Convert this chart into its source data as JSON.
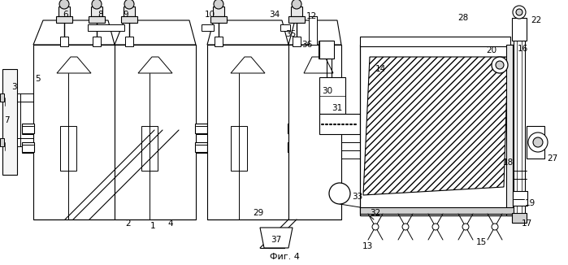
{
  "caption": "Фиг. 4",
  "bg_color": "#ffffff",
  "line_color": "#000000",
  "fig_width": 6.99,
  "fig_height": 3.26,
  "dpi": 100
}
